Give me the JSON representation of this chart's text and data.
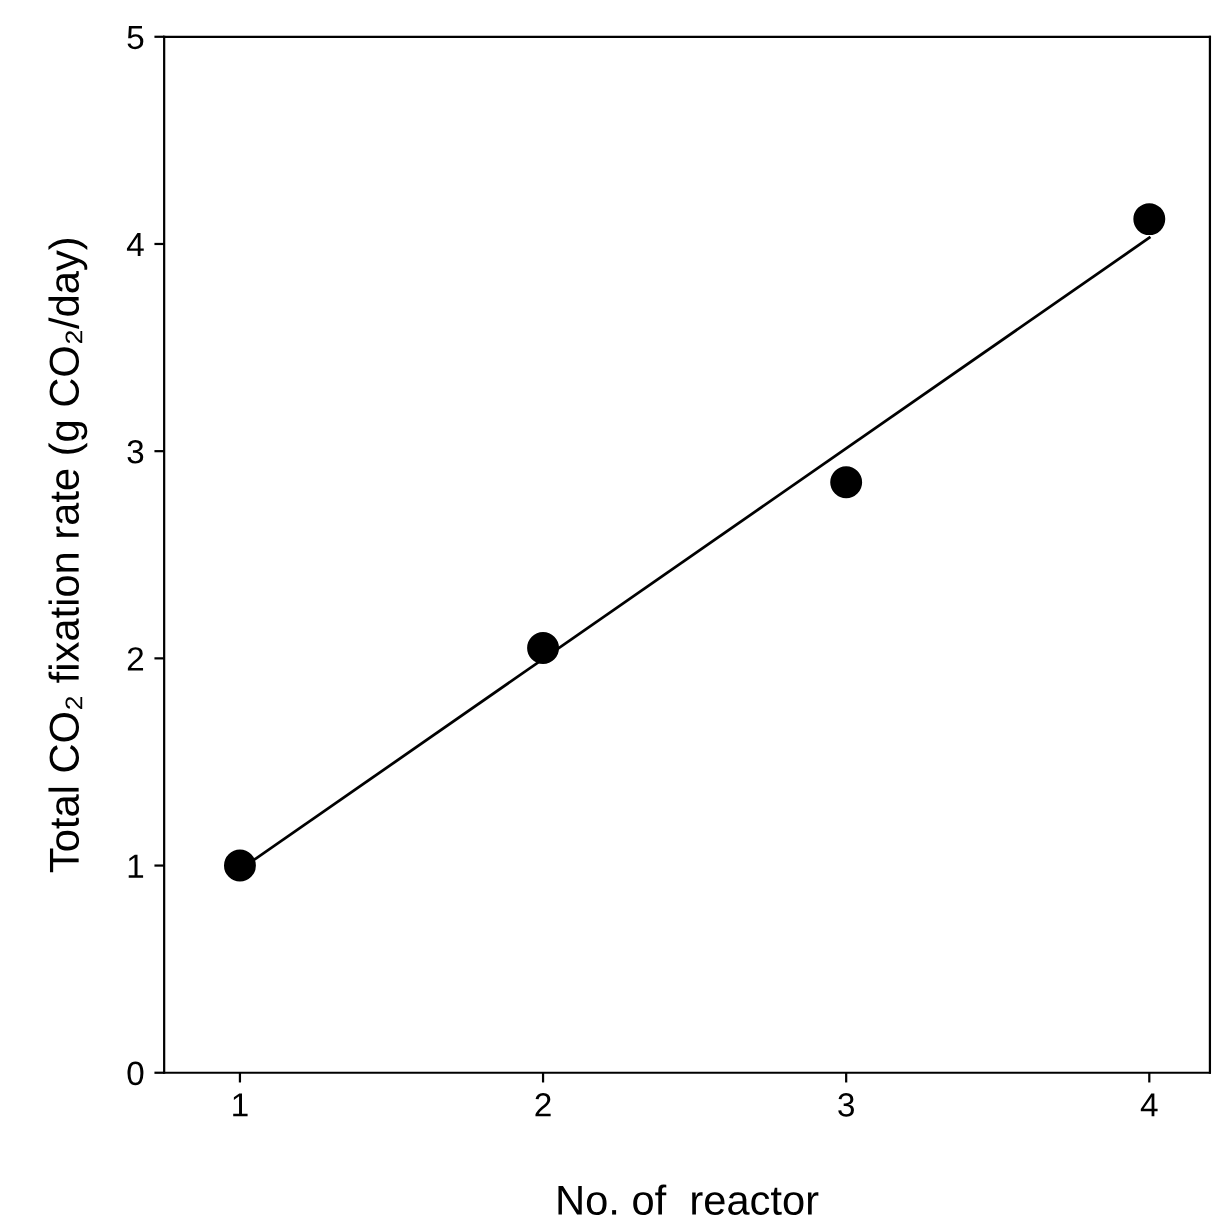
{
  "chart_data": {
    "type": "scatter",
    "xlabel": "No. of  reactor",
    "ylabel": "Total CO₂ fixation rate (g CO₂/day)",
    "series": [
      {
        "color": "#000000",
        "marker": "circle",
        "x": [
          1,
          2,
          3,
          4
        ],
        "values": [
          1.0,
          2.05,
          2.85,
          4.12
        ]
      },
      {
        "type": "line",
        "color": "#000000",
        "marker": "none",
        "line_style": "solid",
        "x": [
          1,
          4
        ],
        "values": [
          0.98,
          4.03
        ]
      }
    ],
    "xlim": [
      0.75,
      4.2
    ],
    "xticks": [
      1,
      2,
      3,
      4
    ],
    "ylim": [
      0,
      5
    ],
    "yticks": [
      0,
      1,
      2,
      3,
      4,
      5
    ],
    "grid": false,
    "legend": false
  }
}
